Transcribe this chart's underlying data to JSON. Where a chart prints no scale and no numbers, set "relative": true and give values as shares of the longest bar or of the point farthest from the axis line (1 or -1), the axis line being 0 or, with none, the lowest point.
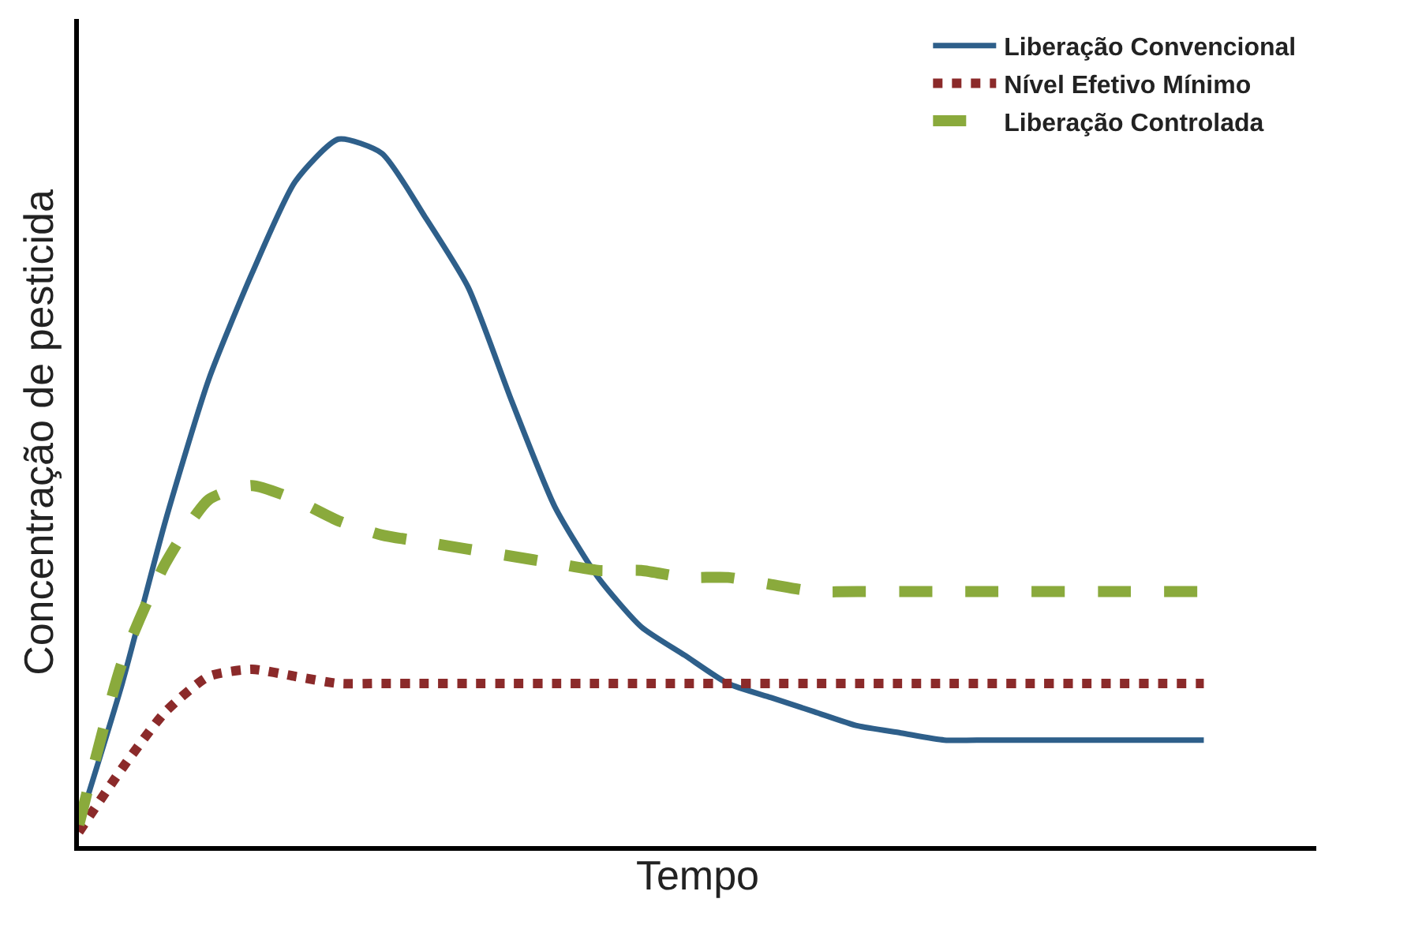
{
  "chart_data": {
    "type": "line",
    "relative": true,
    "xlabel": "Tempo",
    "ylabel": "Concentração de pesticida",
    "legend": "top right",
    "marker": "none",
    "categories": [
      null,
      null,
      null,
      null,
      null,
      null,
      null,
      null,
      null,
      null,
      null,
      null,
      null,
      null,
      null,
      null,
      null,
      null,
      null,
      null,
      null,
      null,
      null,
      null,
      null,
      null,
      null
    ],
    "series": [
      {
        "name": "Liberação Convencional",
        "color": "#2e5f8a",
        "line_style": "solid",
        "values": [
          0.03,
          0.23,
          0.46,
          0.66,
          0.81,
          0.94,
          1.0,
          0.98,
          0.89,
          0.79,
          0.63,
          0.48,
          0.38,
          0.31,
          0.27,
          0.23,
          0.21,
          0.19,
          0.17,
          0.16,
          0.15,
          0.15,
          0.15,
          0.15,
          0.15,
          0.15,
          0.15
        ]
      },
      {
        "name": "Nível Efetivo Mínimo",
        "color": "#8b2a2a",
        "line_style": "dotted",
        "values": [
          0.02,
          0.11,
          0.19,
          0.24,
          0.25,
          0.24,
          0.23,
          0.23,
          0.23,
          0.23,
          0.23,
          0.23,
          0.23,
          0.23,
          0.23,
          0.23,
          0.23,
          0.23,
          0.23,
          0.23,
          0.23,
          0.23,
          0.23,
          0.23,
          0.23,
          0.23,
          0.23
        ]
      },
      {
        "name": "Liberação Controlada",
        "color": "#8aaa3c",
        "line_style": "dashed",
        "values": [
          0.03,
          0.26,
          0.4,
          0.49,
          0.51,
          0.49,
          0.46,
          0.44,
          0.43,
          0.42,
          0.41,
          0.4,
          0.39,
          0.39,
          0.38,
          0.38,
          0.37,
          0.36,
          0.36,
          0.36,
          0.36,
          0.36,
          0.36,
          0.36,
          0.36,
          0.36,
          0.36
        ]
      }
    ]
  }
}
